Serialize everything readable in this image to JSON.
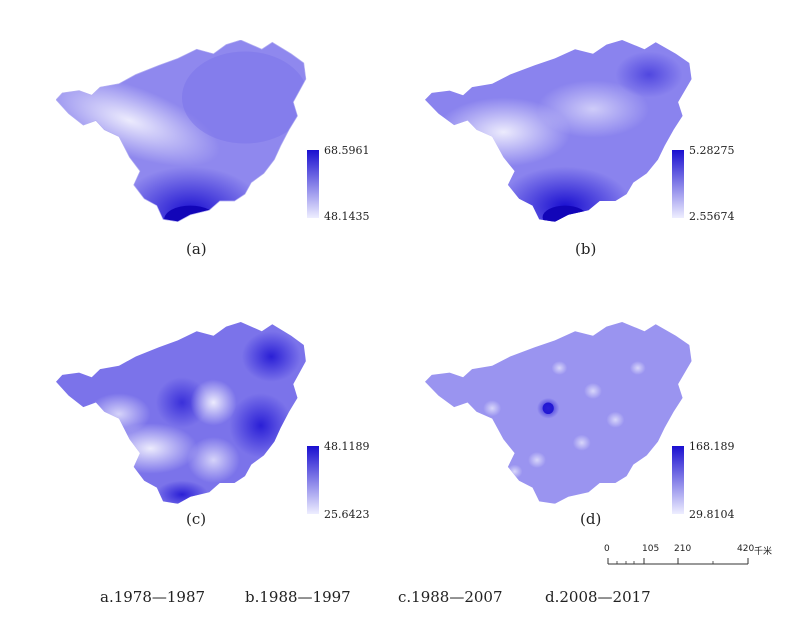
{
  "panels": [
    {
      "id": "a",
      "label": "(a)",
      "legend_max": "68.5961",
      "legend_min": "48.1435"
    },
    {
      "id": "b",
      "label": "(b)",
      "legend_max": "5.28275",
      "legend_min": "2.55674"
    },
    {
      "id": "c",
      "label": "(c)",
      "legend_max": "48.1189",
      "legend_min": "25.6423"
    },
    {
      "id": "d",
      "label": "(d)",
      "legend_max": "168.189",
      "legend_min": "29.8104"
    }
  ],
  "scale": {
    "ticks": [
      "0",
      "105",
      "210",
      "420"
    ],
    "unit": "千米"
  },
  "periods": [
    "a.1978—1987",
    "b.1988—1997",
    "c.1988—2007",
    "d.2008—2017"
  ],
  "colors": {
    "high": "#1a0fd0",
    "low": "#e6e6fc",
    "mid": "#7c73ea"
  }
}
